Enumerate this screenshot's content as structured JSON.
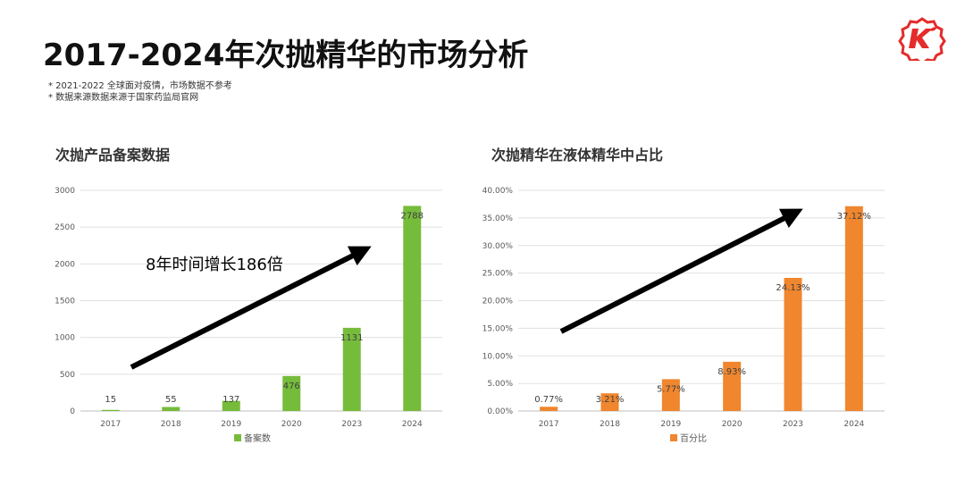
{
  "header": {
    "title": "2017-2024年次抛精华的市场分析",
    "notes": [
      "* 2021-2022 全球面对疫情，市场数据不参考",
      "* 数据来源数据来源于国家药监局官网"
    ],
    "logo_text": "K"
  },
  "chart_data": [
    {
      "type": "bar",
      "title": "次抛产品备案数据",
      "categories": [
        "2017",
        "2018",
        "2019",
        "2020",
        "2023",
        "2024"
      ],
      "series": [
        {
          "name": "备案数",
          "values": [
            15,
            55,
            137,
            476,
            1131,
            2788
          ]
        }
      ],
      "labels": [
        "15",
        "55",
        "137",
        "476",
        "1131",
        "2788"
      ],
      "yticks": [
        "0",
        "500",
        "1000",
        "1500",
        "2000",
        "2500",
        "3000"
      ],
      "ylim": [
        0,
        3000
      ],
      "color": "#76bc3b",
      "annotation": "8年时间增长186倍",
      "legend": "bottom",
      "grid": true
    },
    {
      "type": "bar",
      "title": "次抛精华在液体精华中占比",
      "categories": [
        "2017",
        "2018",
        "2019",
        "2020",
        "2023",
        "2024"
      ],
      "series": [
        {
          "name": "百分比",
          "values": [
            0.77,
            3.21,
            5.77,
            8.93,
            24.13,
            37.12
          ]
        }
      ],
      "labels": [
        "0.77%",
        "3.21%",
        "5.77%",
        "8.93%",
        "24.13%",
        "37.12%"
      ],
      "yticks": [
        "0.00%",
        "5.00%",
        "10.00%",
        "15.00%",
        "20.00%",
        "25.00%",
        "30.00%",
        "35.00%",
        "40.00%"
      ],
      "ylim": [
        0,
        40
      ],
      "color": "#f0862e",
      "legend": "bottom",
      "grid": true
    }
  ]
}
